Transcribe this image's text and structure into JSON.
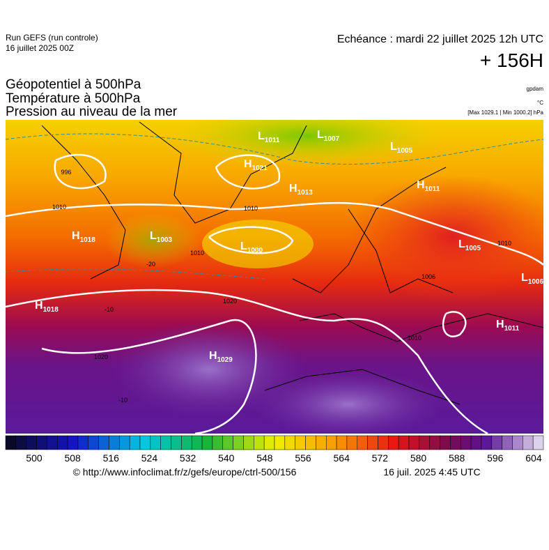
{
  "header": {
    "run": "Run GEFS (run controle)",
    "run_date": "16 juillet 2025 00Z",
    "echeance": "Echéance : mardi 22 juillet 2025 12h UTC",
    "lead": "+ 156H"
  },
  "titles": [
    "Géopotentiel à 500hPa",
    "Température à 500hPa",
    "Pression au niveau de la mer"
  ],
  "units": {
    "geopotential": "gpdam",
    "temperature": "°C",
    "pressure": "[Max 1029.1 | Min 1000.2] hPa"
  },
  "centers": [
    {
      "letter": "L",
      "value": "1011"
    },
    {
      "letter": "L",
      "value": "1007"
    },
    {
      "letter": "L",
      "value": "1005"
    },
    {
      "letter": "H",
      "value": "1021"
    },
    {
      "letter": "H",
      "value": "1013"
    },
    {
      "letter": "H",
      "value": "1011"
    },
    {
      "letter": "H",
      "value": "1018"
    },
    {
      "letter": "L",
      "value": "1003"
    },
    {
      "letter": "L",
      "value": "1000"
    },
    {
      "letter": "L",
      "value": "1005"
    },
    {
      "letter": "L",
      "value": "1006"
    },
    {
      "letter": "H",
      "value": "1018"
    },
    {
      "letter": "H",
      "value": "1029"
    },
    {
      "letter": "H",
      "value": "1011"
    }
  ],
  "isobar_labels": [
    "996",
    "1010",
    "1010",
    "1010",
    "1010",
    "1006",
    "1020",
    "1020",
    "1010"
  ],
  "temperature_labels": [
    "-20",
    "-10",
    "-10"
  ],
  "colorbar_labels": [
    500,
    508,
    516,
    524,
    532,
    540,
    548,
    556,
    564,
    572,
    580,
    588,
    596,
    604
  ],
  "footer": {
    "url": "© http://www.infoclimat.fr/z/gefs/europe/ctrl-500/156",
    "issued": "16 juil. 2025  4:45 UTC"
  }
}
